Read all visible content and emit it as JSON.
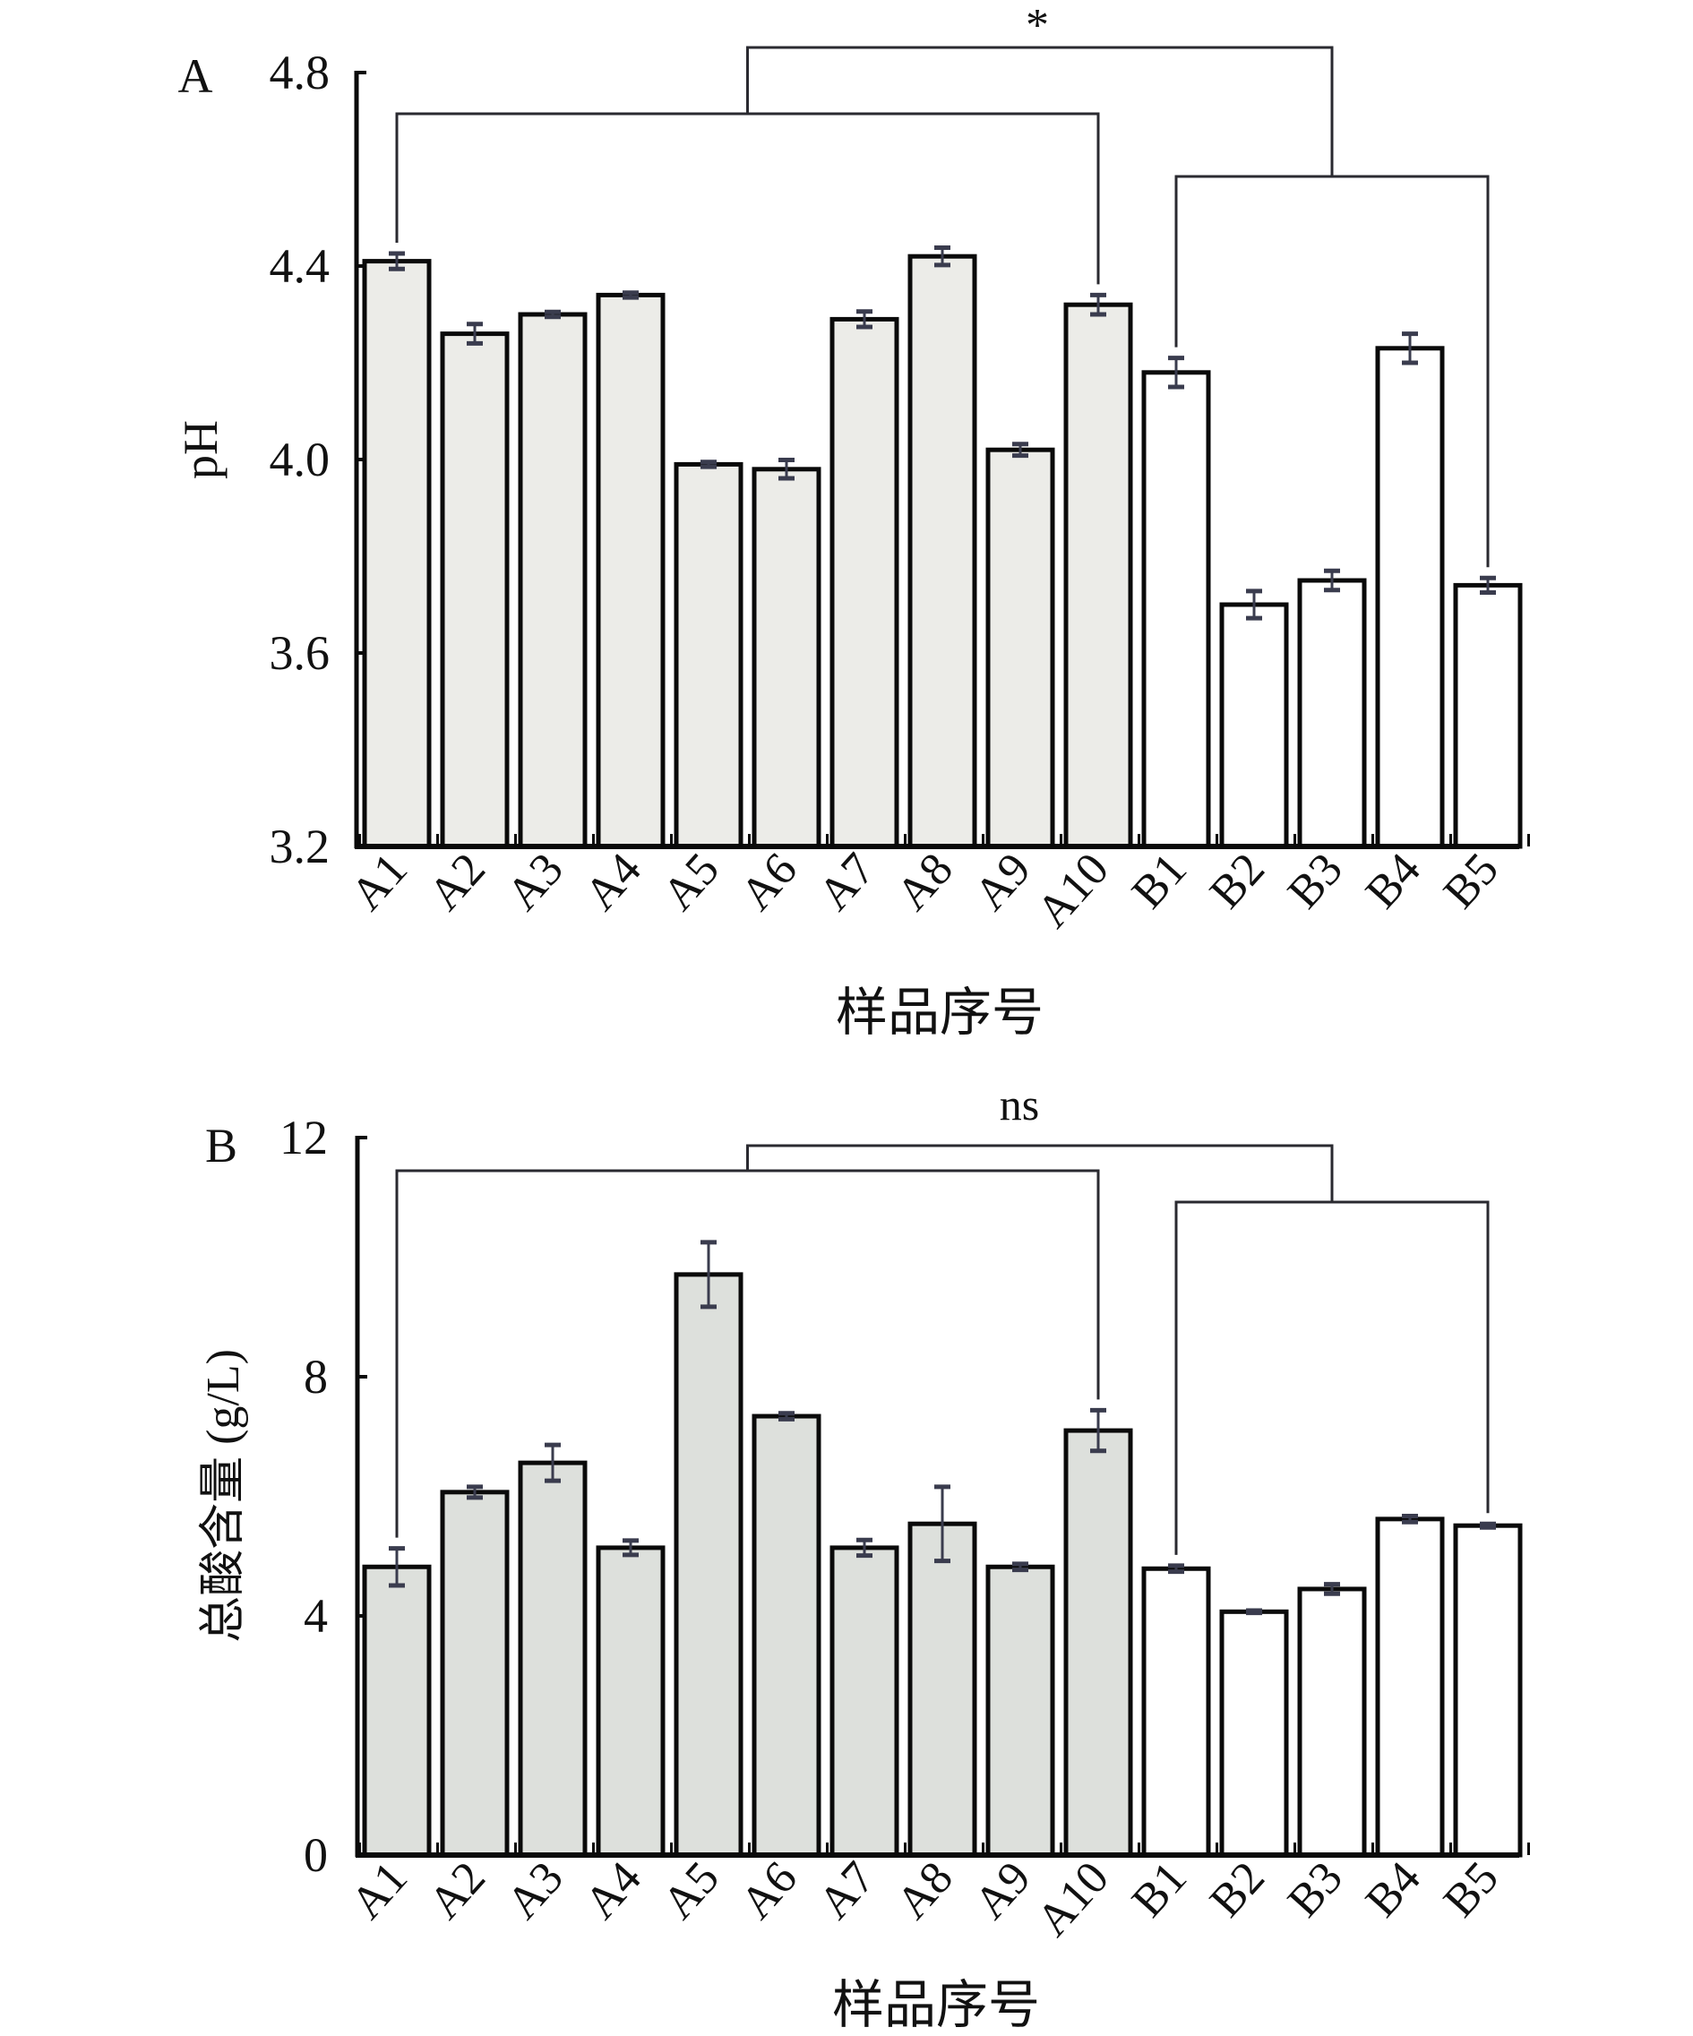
{
  "colors": {
    "axis": "#0a0a0a",
    "bar_outline": "#0a0a0a",
    "errorbar": "#3a3c4e",
    "bracket": "#2a2a30",
    "panel_a_groupA_fill": "#ecece8",
    "panel_b_groupA_fill": "#dde0dc",
    "groupB_fill": "#ffffff"
  },
  "chart_data": [
    {
      "type": "bar",
      "panel_label": "A",
      "title": "",
      "xlabel": "样品序号",
      "ylabel": "pH",
      "ylim": [
        3.2,
        4.8
      ],
      "yticks": [
        "3.2",
        "3.6",
        "4.0",
        "4.4",
        "4.8"
      ],
      "ytick_values": [
        3.2,
        3.6,
        4.0,
        4.4,
        4.8
      ],
      "grid": false,
      "categories": [
        "A1",
        "A2",
        "A3",
        "A4",
        "A5",
        "A6",
        "A7",
        "A8",
        "A9",
        "A10",
        "B1",
        "B2",
        "B3",
        "B4",
        "B5"
      ],
      "groups": [
        "A",
        "A",
        "A",
        "A",
        "A",
        "A",
        "A",
        "A",
        "A",
        "A",
        "B",
        "B",
        "B",
        "B",
        "B"
      ],
      "values": [
        4.41,
        4.26,
        4.3,
        4.34,
        3.99,
        3.98,
        4.29,
        4.42,
        4.02,
        4.32,
        4.18,
        3.7,
        3.75,
        4.23,
        3.74
      ],
      "errors": [
        0.016,
        0.02,
        0.005,
        0.005,
        0.005,
        0.019,
        0.016,
        0.018,
        0.012,
        0.02,
        0.03,
        0.028,
        0.02,
        0.03,
        0.015
      ],
      "comparison": {
        "group1": {
          "from": "A1",
          "to": "A10"
        },
        "group2": {
          "from": "B1",
          "to": "B5"
        },
        "label": "*"
      }
    },
    {
      "type": "bar",
      "panel_label": "B",
      "title": "",
      "xlabel": "样品序号",
      "ylabel": "总酸含量 (g/L)",
      "ylim": [
        0,
        12
      ],
      "yticks": [
        "0",
        "4",
        "8",
        "12"
      ],
      "ytick_values": [
        0,
        4,
        8,
        12
      ],
      "grid": false,
      "categories": [
        "A1",
        "A2",
        "A3",
        "A4",
        "A5",
        "A6",
        "A7",
        "A8",
        "A9",
        "A10",
        "B1",
        "B2",
        "B3",
        "B4",
        "B5"
      ],
      "groups": [
        "A",
        "A",
        "A",
        "A",
        "A",
        "A",
        "A",
        "A",
        "A",
        "A",
        "B",
        "B",
        "B",
        "B",
        "B"
      ],
      "values": [
        4.82,
        6.07,
        6.56,
        5.14,
        9.71,
        7.34,
        5.14,
        5.54,
        4.82,
        7.1,
        4.79,
        4.07,
        4.45,
        5.62,
        5.51
      ],
      "errors": [
        0.31,
        0.09,
        0.3,
        0.12,
        0.54,
        0.05,
        0.13,
        0.62,
        0.05,
        0.34,
        0.05,
        0.02,
        0.08,
        0.05,
        0.03
      ],
      "comparison": {
        "group1": {
          "from": "A1",
          "to": "A10"
        },
        "group2": {
          "from": "B1",
          "to": "B5"
        },
        "label": "ns"
      }
    }
  ]
}
